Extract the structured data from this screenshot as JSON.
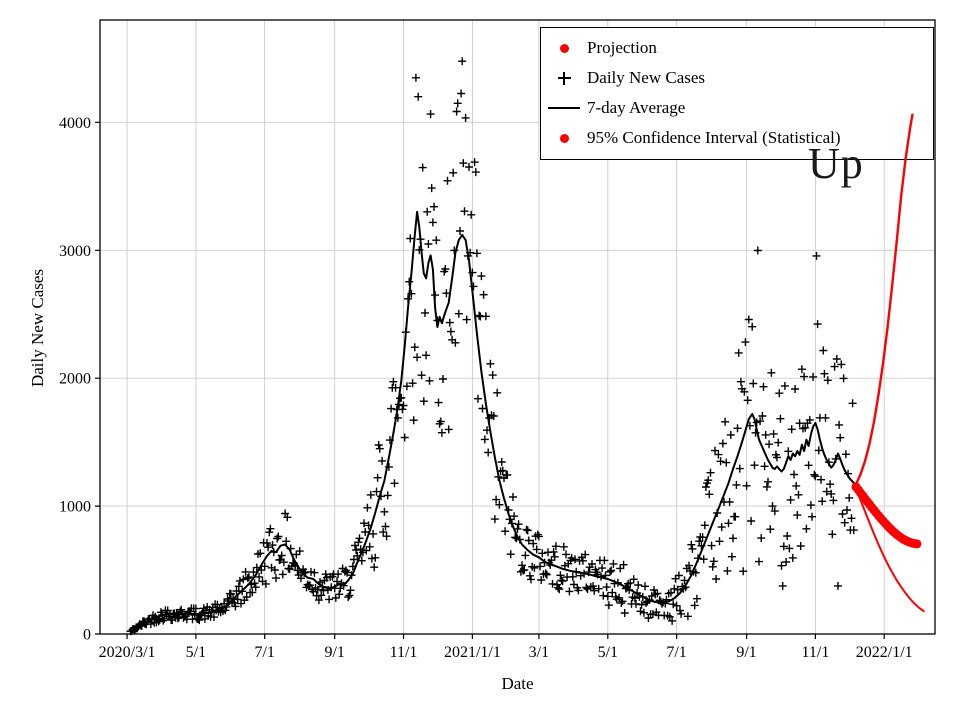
{
  "figure": {
    "background": "#ffffff"
  },
  "annotation": {
    "text": "Up",
    "color": "#1a1a1a"
  },
  "chart_data": {
    "type": "line",
    "title": "",
    "xlabel": "Date",
    "ylabel": "Daily New Cases",
    "x_unit": "days since 2020/3/1",
    "xlim": [
      -24,
      716
    ],
    "ylim": [
      0,
      4800
    ],
    "grid": true,
    "grid_color": "#cccccc",
    "axis_color": "#000000",
    "x_ticks": [
      {
        "day": 0,
        "label": "2020/3/1"
      },
      {
        "day": 61,
        "label": "5/1"
      },
      {
        "day": 122,
        "label": "7/1"
      },
      {
        "day": 184,
        "label": "9/1"
      },
      {
        "day": 245,
        "label": "11/1"
      },
      {
        "day": 306,
        "label": "2021/1/1"
      },
      {
        "day": 365,
        "label": "3/1"
      },
      {
        "day": 426,
        "label": "5/1"
      },
      {
        "day": 487,
        "label": "7/1"
      },
      {
        "day": 549,
        "label": "9/1"
      },
      {
        "day": 610,
        "label": "11/1"
      },
      {
        "day": 671,
        "label": "2022/1/1"
      }
    ],
    "y_ticks": [
      0,
      1000,
      2000,
      3000,
      4000
    ],
    "legend": {
      "position": "upper right",
      "entries": [
        {
          "label": "Projection",
          "marker": "dot",
          "color": "#ff0000"
        },
        {
          "label": "Daily New Cases",
          "marker": "plus",
          "color": "#000000"
        },
        {
          "label": "7-day Average",
          "marker": "line",
          "color": "#000000"
        },
        {
          "label": "95% Confidence Interval (Statistical)",
          "marker": "dot",
          "color": "#ff0000"
        }
      ]
    },
    "series": [
      {
        "name": "7-day Average",
        "type": "line",
        "color": "#000000",
        "width": 2,
        "points": [
          [
            3,
            20
          ],
          [
            8,
            45
          ],
          [
            14,
            80
          ],
          [
            20,
            110
          ],
          [
            26,
            130
          ],
          [
            32,
            150
          ],
          [
            38,
            155
          ],
          [
            45,
            150
          ],
          [
            52,
            160
          ],
          [
            61,
            155
          ],
          [
            68,
            160
          ],
          [
            75,
            170
          ],
          [
            82,
            185
          ],
          [
            90,
            230
          ],
          [
            96,
            290
          ],
          [
            102,
            340
          ],
          [
            108,
            390
          ],
          [
            114,
            460
          ],
          [
            119,
            540
          ],
          [
            124,
            610
          ],
          [
            128,
            650
          ],
          [
            132,
            640
          ],
          [
            136,
            690
          ],
          [
            140,
            700
          ],
          [
            144,
            660
          ],
          [
            148,
            580
          ],
          [
            152,
            520
          ],
          [
            156,
            470
          ],
          [
            160,
            440
          ],
          [
            165,
            430
          ],
          [
            170,
            390
          ],
          [
            175,
            365
          ],
          [
            180,
            355
          ],
          [
            184,
            370
          ],
          [
            188,
            390
          ],
          [
            192,
            380
          ],
          [
            196,
            420
          ],
          [
            200,
            470
          ],
          [
            204,
            560
          ],
          [
            208,
            640
          ],
          [
            212,
            730
          ],
          [
            216,
            830
          ],
          [
            220,
            950
          ],
          [
            224,
            1080
          ],
          [
            228,
            1200
          ],
          [
            232,
            1380
          ],
          [
            236,
            1570
          ],
          [
            240,
            1780
          ],
          [
            243,
            1980
          ],
          [
            246,
            2250
          ],
          [
            249,
            2550
          ],
          [
            252,
            2820
          ],
          [
            255,
            3120
          ],
          [
            257,
            3300
          ],
          [
            259,
            3180
          ],
          [
            261,
            2980
          ],
          [
            263,
            2820
          ],
          [
            265,
            2780
          ],
          [
            267,
            2900
          ],
          [
            269,
            2960
          ],
          [
            271,
            2850
          ],
          [
            273,
            2550
          ],
          [
            275,
            2400
          ],
          [
            277,
            2480
          ],
          [
            279,
            2430
          ],
          [
            281,
            2490
          ],
          [
            283,
            2540
          ],
          [
            285,
            2590
          ],
          [
            288,
            2780
          ],
          [
            291,
            2980
          ],
          [
            294,
            3080
          ],
          [
            297,
            3120
          ],
          [
            300,
            3080
          ],
          [
            303,
            2920
          ],
          [
            306,
            2680
          ],
          [
            310,
            2350
          ],
          [
            314,
            2050
          ],
          [
            318,
            1800
          ],
          [
            322,
            1580
          ],
          [
            326,
            1380
          ],
          [
            330,
            1200
          ],
          [
            334,
            1060
          ],
          [
            338,
            940
          ],
          [
            342,
            840
          ],
          [
            346,
            760
          ],
          [
            350,
            700
          ],
          [
            355,
            655
          ],
          [
            360,
            620
          ],
          [
            365,
            600
          ],
          [
            370,
            565
          ],
          [
            375,
            545
          ],
          [
            380,
            530
          ],
          [
            386,
            510
          ],
          [
            392,
            495
          ],
          [
            398,
            485
          ],
          [
            404,
            475
          ],
          [
            410,
            465
          ],
          [
            416,
            450
          ],
          [
            421,
            440
          ],
          [
            426,
            430
          ],
          [
            432,
            410
          ],
          [
            438,
            385
          ],
          [
            444,
            355
          ],
          [
            450,
            325
          ],
          [
            456,
            295
          ],
          [
            462,
            268
          ],
          [
            468,
            250
          ],
          [
            474,
            242
          ],
          [
            480,
            255
          ],
          [
            485,
            280
          ],
          [
            490,
            320
          ],
          [
            495,
            380
          ],
          [
            500,
            460
          ],
          [
            505,
            560
          ],
          [
            510,
            670
          ],
          [
            515,
            780
          ],
          [
            520,
            890
          ],
          [
            525,
            1000
          ],
          [
            529,
            1090
          ],
          [
            533,
            1180
          ],
          [
            537,
            1290
          ],
          [
            541,
            1390
          ],
          [
            545,
            1500
          ],
          [
            548,
            1590
          ],
          [
            551,
            1680
          ],
          [
            554,
            1720
          ],
          [
            556,
            1680
          ],
          [
            558,
            1600
          ],
          [
            560,
            1520
          ],
          [
            562,
            1480
          ],
          [
            564,
            1440
          ],
          [
            566,
            1400
          ],
          [
            568,
            1360
          ],
          [
            570,
            1330
          ],
          [
            572,
            1300
          ],
          [
            574,
            1290
          ],
          [
            576,
            1310
          ],
          [
            578,
            1290
          ],
          [
            580,
            1270
          ],
          [
            582,
            1290
          ],
          [
            584,
            1340
          ],
          [
            586,
            1390
          ],
          [
            588,
            1360
          ],
          [
            590,
            1410
          ],
          [
            592,
            1390
          ],
          [
            594,
            1430
          ],
          [
            596,
            1400
          ],
          [
            598,
            1480
          ],
          [
            600,
            1430
          ],
          [
            602,
            1520
          ],
          [
            604,
            1470
          ],
          [
            606,
            1560
          ],
          [
            608,
            1620
          ],
          [
            610,
            1650
          ],
          [
            612,
            1600
          ],
          [
            614,
            1520
          ],
          [
            616,
            1450
          ],
          [
            618,
            1400
          ],
          [
            620,
            1360
          ],
          [
            622,
            1330
          ],
          [
            624,
            1300
          ],
          [
            626,
            1320
          ],
          [
            628,
            1360
          ],
          [
            630,
            1410
          ],
          [
            632,
            1370
          ],
          [
            634,
            1320
          ],
          [
            636,
            1280
          ],
          [
            638,
            1250
          ],
          [
            640,
            1220
          ],
          [
            642,
            1200
          ],
          [
            644,
            1180
          ],
          [
            646,
            1170
          ]
        ]
      },
      {
        "name": "Daily New Cases",
        "type": "scatter-plus",
        "color": "#000000",
        "arm": 4,
        "stroke": 1.4,
        "model": {
          "seed": 42,
          "day_start": 3,
          "day_end": 644,
          "rel_spread": [
            [
              0,
              0.32
            ],
            [
              100,
              0.35
            ],
            [
              215,
              0.45
            ],
            [
              255,
              0.4
            ],
            [
              295,
              0.5
            ],
            [
              330,
              0.35
            ],
            [
              430,
              0.45
            ],
            [
              480,
              0.58
            ]
          ],
          "weekly_dip": {
            "period": 7,
            "factor": 0.6,
            "after_day": 420
          },
          "spike": {
            "period": 13,
            "factor": 1.22,
            "after_day": 470
          },
          "clamp": [
            10,
            4650
          ]
        }
      },
      {
        "name": "Projection",
        "type": "scatter-dot",
        "color": "#ff0000",
        "radius": 4.5,
        "points": [
          [
            646,
            1150
          ],
          [
            648,
            1127
          ],
          [
            650,
            1104
          ],
          [
            652,
            1081
          ],
          [
            654,
            1058
          ],
          [
            656,
            1035
          ],
          [
            658,
            1012
          ],
          [
            660,
            990
          ],
          [
            662,
            968
          ],
          [
            664,
            946
          ],
          [
            666,
            925
          ],
          [
            668,
            904
          ],
          [
            670,
            884
          ],
          [
            672,
            864
          ],
          [
            674,
            845
          ],
          [
            676,
            827
          ],
          [
            678,
            810
          ],
          [
            680,
            794
          ],
          [
            682,
            779
          ],
          [
            684,
            765
          ],
          [
            686,
            752
          ],
          [
            688,
            741
          ],
          [
            690,
            731
          ],
          [
            692,
            723
          ],
          [
            694,
            716
          ],
          [
            696,
            711
          ],
          [
            698,
            707
          ],
          [
            700,
            704
          ]
        ]
      },
      {
        "name": "95% CI Upper",
        "type": "line",
        "color": "#ff0000",
        "width": 2.4,
        "points": [
          [
            646,
            1170
          ],
          [
            650,
            1248
          ],
          [
            654,
            1352
          ],
          [
            658,
            1490
          ],
          [
            662,
            1662
          ],
          [
            666,
            1876
          ],
          [
            670,
            2120
          ],
          [
            674,
            2400
          ],
          [
            678,
            2720
          ],
          [
            682,
            3060
          ],
          [
            686,
            3420
          ],
          [
            690,
            3720
          ],
          [
            694,
            3960
          ],
          [
            696,
            4060
          ]
        ]
      },
      {
        "name": "95% CI Lower",
        "type": "line",
        "color": "#ff0000",
        "width": 2,
        "points": [
          [
            646,
            1130
          ],
          [
            650,
            1048
          ],
          [
            654,
            958
          ],
          [
            658,
            868
          ],
          [
            662,
            780
          ],
          [
            666,
            698
          ],
          [
            670,
            620
          ],
          [
            674,
            548
          ],
          [
            678,
            482
          ],
          [
            682,
            422
          ],
          [
            686,
            368
          ],
          [
            690,
            318
          ],
          [
            694,
            274
          ],
          [
            698,
            236
          ],
          [
            702,
            204
          ],
          [
            706,
            178
          ]
        ]
      }
    ]
  }
}
